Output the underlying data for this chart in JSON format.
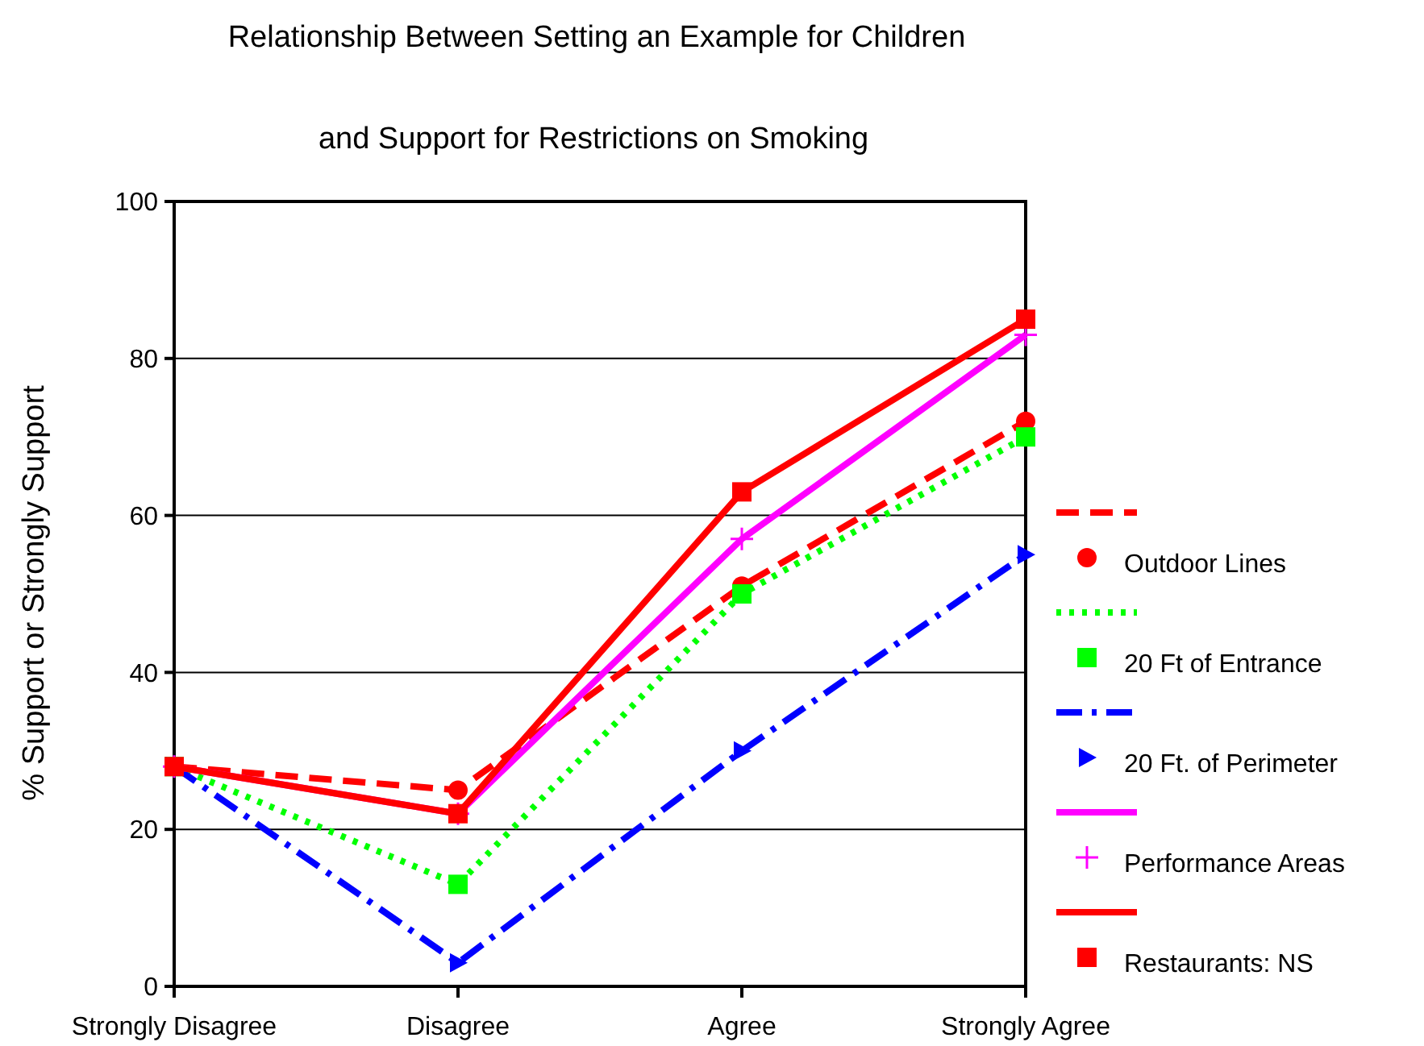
{
  "chart_data": {
    "type": "line",
    "title": "Relationship Between Setting an Example for Children",
    "subtitle": "and Support for Restrictions on Smoking",
    "ylabel": "% Support or Strongly Support",
    "categories": [
      "Strongly Disagree",
      "Disagree",
      "Agree",
      "Strongly Agree"
    ],
    "ylim": [
      0,
      100
    ],
    "yticks": [
      0,
      20,
      40,
      60,
      80,
      100
    ],
    "grid": "y",
    "legend": "right",
    "series": [
      {
        "name": "Outdoor Lines",
        "color": "#ff0000",
        "line_style": "dashed",
        "marker": "circle",
        "values": [
          28,
          25,
          51,
          72
        ]
      },
      {
        "name": "20 Ft of Entrance",
        "color": "#00ff00",
        "line_style": "dotted",
        "marker": "square",
        "values": [
          28,
          13,
          50,
          70
        ]
      },
      {
        "name": "20 Ft. of Perimeter",
        "color": "#0000ff",
        "line_style": "dashdot",
        "marker": "triangle",
        "values": [
          28,
          3,
          30,
          55
        ]
      },
      {
        "name": "Performance Areas",
        "color": "#ff00ff",
        "line_style": "solid",
        "marker": "cross",
        "values": [
          28,
          22,
          57,
          83
        ]
      },
      {
        "name": "Restaurants: NS",
        "color": "#ff0000",
        "line_style": "solid",
        "marker": "square",
        "values": [
          28,
          22,
          63,
          85
        ]
      }
    ]
  }
}
